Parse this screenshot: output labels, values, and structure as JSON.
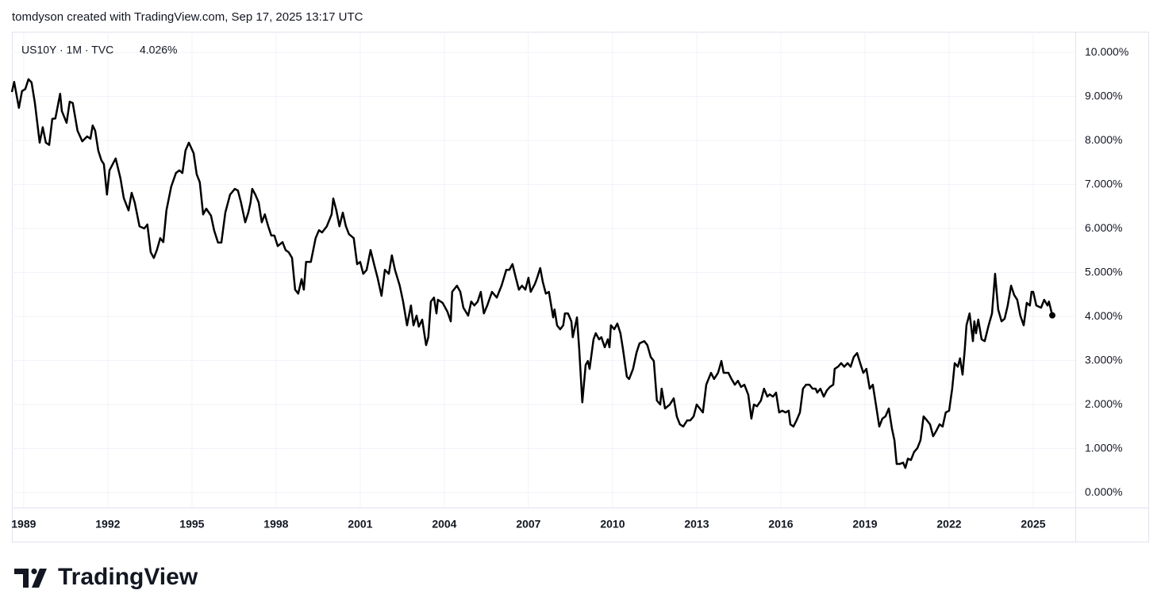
{
  "chart_data": {
    "type": "line",
    "credit": "tomdyson created with TradingView.com, Sep 17, 2025 13:17 UTC",
    "symbol_label": "US10Y · 1M · TVC",
    "last_value_label": "4.026%",
    "brand": "TradingView",
    "color": "#000000",
    "grid": true,
    "xlim": [
      1988.58,
      2026.5
    ],
    "xticks": [
      1989,
      1992,
      1995,
      1998,
      2001,
      2004,
      2007,
      2010,
      2013,
      2016,
      2019,
      2022,
      2025
    ],
    "ylim": [
      -0.34,
      10.47
    ],
    "yticks": [
      {
        "value": 0,
        "label": "0.000%"
      },
      {
        "value": 1,
        "label": "1.000%"
      },
      {
        "value": 2,
        "label": "2.000%"
      },
      {
        "value": 3,
        "label": "3.000%"
      },
      {
        "value": 4,
        "label": "4.000%"
      },
      {
        "value": 5,
        "label": "5.000%"
      },
      {
        "value": 6,
        "label": "6.000%"
      },
      {
        "value": 7,
        "label": "7.000%"
      },
      {
        "value": 8,
        "label": "8.000%"
      },
      {
        "value": 9,
        "label": "9.000%"
      },
      {
        "value": 10,
        "label": "10.000%"
      }
    ],
    "x": [
      1988.58,
      1988.66,
      1988.83,
      1988.94,
      1989.06,
      1989.17,
      1989.28,
      1989.4,
      1989.57,
      1989.68,
      1989.79,
      1989.91,
      1990.02,
      1990.13,
      1990.3,
      1990.36,
      1990.53,
      1990.64,
      1990.75,
      1990.92,
      1991.09,
      1991.26,
      1991.38,
      1991.46,
      1991.55,
      1991.66,
      1991.77,
      1991.86,
      1991.97,
      1992.06,
      1992.28,
      1992.45,
      1992.57,
      1992.74,
      1992.85,
      1992.96,
      1993.13,
      1993.3,
      1993.41,
      1993.53,
      1993.64,
      1993.75,
      1993.87,
      1993.98,
      1994.09,
      1994.26,
      1994.43,
      1994.55,
      1994.66,
      1994.77,
      1994.89,
      1995.06,
      1995.17,
      1995.28,
      1995.4,
      1995.51,
      1995.68,
      1995.79,
      1995.93,
      1996.05,
      1996.19,
      1996.36,
      1996.53,
      1996.64,
      1996.75,
      1996.9,
      1997.01,
      1997.09,
      1997.15,
      1997.26,
      1997.38,
      1997.49,
      1997.6,
      1997.72,
      1997.83,
      1997.94,
      1998.06,
      1998.23,
      1998.34,
      1998.45,
      1998.57,
      1998.68,
      1998.79,
      1998.91,
      1998.99,
      1999.07,
      1999.24,
      1999.41,
      1999.53,
      1999.64,
      1999.81,
      1999.98,
      2000.04,
      2000.15,
      2000.26,
      2000.38,
      2000.49,
      2000.6,
      2000.77,
      2000.89,
      2001.0,
      2001.11,
      2001.23,
      2001.37,
      2001.51,
      2001.62,
      2001.76,
      2001.88,
      2002.02,
      2002.13,
      2002.24,
      2002.41,
      2002.53,
      2002.67,
      2002.81,
      2002.9,
      2003.01,
      2003.09,
      2003.21,
      2003.35,
      2003.43,
      2003.52,
      2003.63,
      2003.72,
      2003.77,
      2003.94,
      2004.11,
      2004.23,
      2004.28,
      2004.45,
      2004.57,
      2004.68,
      2004.85,
      2004.96,
      2005.07,
      2005.19,
      2005.3,
      2005.41,
      2005.53,
      2005.7,
      2005.87,
      2006.04,
      2006.21,
      2006.32,
      2006.43,
      2006.55,
      2006.66,
      2006.77,
      2006.89,
      2007.0,
      2007.08,
      2007.23,
      2007.31,
      2007.42,
      2007.51,
      2007.62,
      2007.73,
      2007.88,
      2007.93,
      2008.02,
      2008.13,
      2008.24,
      2008.3,
      2008.41,
      2008.53,
      2008.58,
      2008.73,
      2008.81,
      2008.92,
      2009.04,
      2009.12,
      2009.18,
      2009.32,
      2009.4,
      2009.52,
      2009.6,
      2009.72,
      2009.83,
      2009.89,
      2009.94,
      2010.06,
      2010.17,
      2010.28,
      2010.37,
      2010.51,
      2010.59,
      2010.73,
      2010.85,
      2010.96,
      2011.13,
      2011.24,
      2011.36,
      2011.47,
      2011.58,
      2011.7,
      2011.75,
      2011.87,
      2012.04,
      2012.18,
      2012.29,
      2012.4,
      2012.52,
      2012.66,
      2012.77,
      2012.89,
      2013.0,
      2013.11,
      2013.22,
      2013.34,
      2013.51,
      2013.62,
      2013.76,
      2013.88,
      2013.96,
      2014.13,
      2014.24,
      2014.36,
      2014.47,
      2014.58,
      2014.7,
      2014.84,
      2014.95,
      2015.04,
      2015.15,
      2015.29,
      2015.4,
      2015.52,
      2015.6,
      2015.72,
      2015.83,
      2015.94,
      2016.05,
      2016.17,
      2016.28,
      2016.34,
      2016.45,
      2016.56,
      2016.68,
      2016.79,
      2016.9,
      2017.02,
      2017.13,
      2017.24,
      2017.3,
      2017.41,
      2017.53,
      2017.64,
      2017.75,
      2017.87,
      2017.92,
      2018.04,
      2018.15,
      2018.26,
      2018.38,
      2018.49,
      2018.6,
      2018.72,
      2018.83,
      2018.94,
      2019.05,
      2019.17,
      2019.28,
      2019.39,
      2019.51,
      2019.62,
      2019.73,
      2019.85,
      2019.96,
      2020.05,
      2020.13,
      2020.24,
      2020.36,
      2020.44,
      2020.53,
      2020.64,
      2020.75,
      2020.87,
      2020.98,
      2021.09,
      2021.21,
      2021.32,
      2021.43,
      2021.55,
      2021.66,
      2021.77,
      2021.88,
      2022.0,
      2022.11,
      2022.2,
      2022.31,
      2022.39,
      2022.48,
      2022.56,
      2022.62,
      2022.73,
      2022.85,
      2022.9,
      2022.96,
      2023.04,
      2023.16,
      2023.27,
      2023.41,
      2023.53,
      2023.64,
      2023.75,
      2023.87,
      2023.98,
      2024.09,
      2024.21,
      2024.32,
      2024.43,
      2024.54,
      2024.66,
      2024.77,
      2024.88,
      2024.94,
      2025.0,
      2025.11,
      2025.28,
      2025.39,
      2025.51,
      2025.56,
      2025.68
    ],
    "values": [
      9.1,
      9.33,
      8.74,
      9.12,
      9.17,
      9.39,
      9.32,
      8.85,
      7.95,
      8.3,
      7.95,
      7.9,
      8.49,
      8.5,
      9.06,
      8.67,
      8.4,
      8.88,
      8.85,
      8.22,
      7.98,
      8.09,
      8.04,
      8.34,
      8.22,
      7.77,
      7.55,
      7.46,
      6.77,
      7.32,
      7.59,
      7.14,
      6.69,
      6.41,
      6.81,
      6.59,
      6.05,
      6.0,
      6.09,
      5.46,
      5.33,
      5.51,
      5.78,
      5.69,
      6.41,
      6.95,
      7.26,
      7.32,
      7.26,
      7.77,
      7.95,
      7.71,
      7.23,
      7.05,
      6.32,
      6.45,
      6.29,
      5.96,
      5.68,
      5.68,
      6.36,
      6.77,
      6.9,
      6.86,
      6.59,
      6.14,
      6.36,
      6.59,
      6.9,
      6.77,
      6.59,
      6.14,
      6.32,
      6.05,
      5.84,
      5.84,
      5.6,
      5.69,
      5.51,
      5.46,
      5.33,
      4.61,
      4.52,
      4.85,
      4.61,
      5.24,
      5.24,
      5.78,
      5.96,
      5.91,
      6.05,
      6.32,
      6.68,
      6.41,
      6.05,
      6.36,
      6.05,
      5.87,
      5.78,
      5.19,
      5.24,
      4.97,
      5.06,
      5.51,
      5.15,
      4.88,
      4.47,
      5.06,
      4.97,
      5.39,
      5.06,
      4.7,
      4.34,
      3.8,
      4.25,
      3.8,
      4.02,
      3.77,
      3.93,
      3.35,
      3.53,
      4.34,
      4.43,
      4.07,
      4.38,
      4.31,
      4.11,
      3.89,
      4.56,
      4.7,
      4.56,
      4.2,
      4.02,
      4.34,
      4.25,
      4.34,
      4.56,
      4.07,
      4.25,
      4.56,
      4.43,
      4.7,
      5.06,
      5.06,
      5.19,
      4.88,
      4.61,
      4.7,
      4.61,
      4.88,
      4.56,
      4.74,
      4.88,
      5.1,
      4.79,
      4.52,
      4.56,
      3.98,
      4.16,
      3.8,
      3.71,
      3.8,
      4.07,
      4.07,
      3.89,
      3.53,
      3.98,
      3.26,
      2.05,
      2.9,
      2.99,
      2.81,
      3.48,
      3.62,
      3.48,
      3.53,
      3.3,
      3.48,
      3.3,
      3.8,
      3.71,
      3.84,
      3.62,
      3.26,
      2.63,
      2.58,
      2.81,
      3.17,
      3.39,
      3.44,
      3.35,
      3.08,
      2.99,
      2.09,
      2.0,
      2.36,
      1.91,
      2.0,
      2.14,
      1.73,
      1.55,
      1.5,
      1.64,
      1.64,
      1.73,
      2.0,
      1.91,
      1.82,
      2.45,
      2.72,
      2.58,
      2.72,
      2.99,
      2.72,
      2.72,
      2.58,
      2.45,
      2.54,
      2.4,
      2.45,
      2.22,
      1.68,
      2.0,
      1.96,
      2.09,
      2.36,
      2.18,
      2.23,
      2.18,
      2.27,
      1.82,
      1.86,
      1.82,
      1.86,
      1.55,
      1.5,
      1.64,
      1.82,
      2.36,
      2.45,
      2.45,
      2.36,
      2.36,
      2.27,
      2.36,
      2.18,
      2.32,
      2.4,
      2.45,
      2.81,
      2.86,
      2.94,
      2.86,
      2.94,
      2.86,
      3.08,
      3.17,
      2.94,
      2.72,
      2.81,
      2.36,
      2.45,
      2.0,
      1.5,
      1.68,
      1.73,
      1.91,
      1.46,
      1.19,
      0.65,
      0.65,
      0.68,
      0.56,
      0.77,
      0.74,
      0.92,
      1.01,
      1.19,
      1.73,
      1.64,
      1.55,
      1.28,
      1.41,
      1.55,
      1.5,
      1.82,
      1.86,
      2.36,
      2.94,
      2.86,
      3.05,
      2.68,
      3.26,
      3.8,
      4.07,
      3.44,
      3.89,
      3.62,
      3.93,
      3.48,
      3.44,
      3.8,
      4.07,
      4.97,
      4.16,
      3.89,
      3.95,
      4.25,
      4.7,
      4.49,
      4.38,
      4.02,
      3.8,
      4.31,
      4.25,
      4.56,
      4.56,
      4.25,
      4.2,
      4.38,
      4.25,
      4.34,
      4.026
    ]
  }
}
